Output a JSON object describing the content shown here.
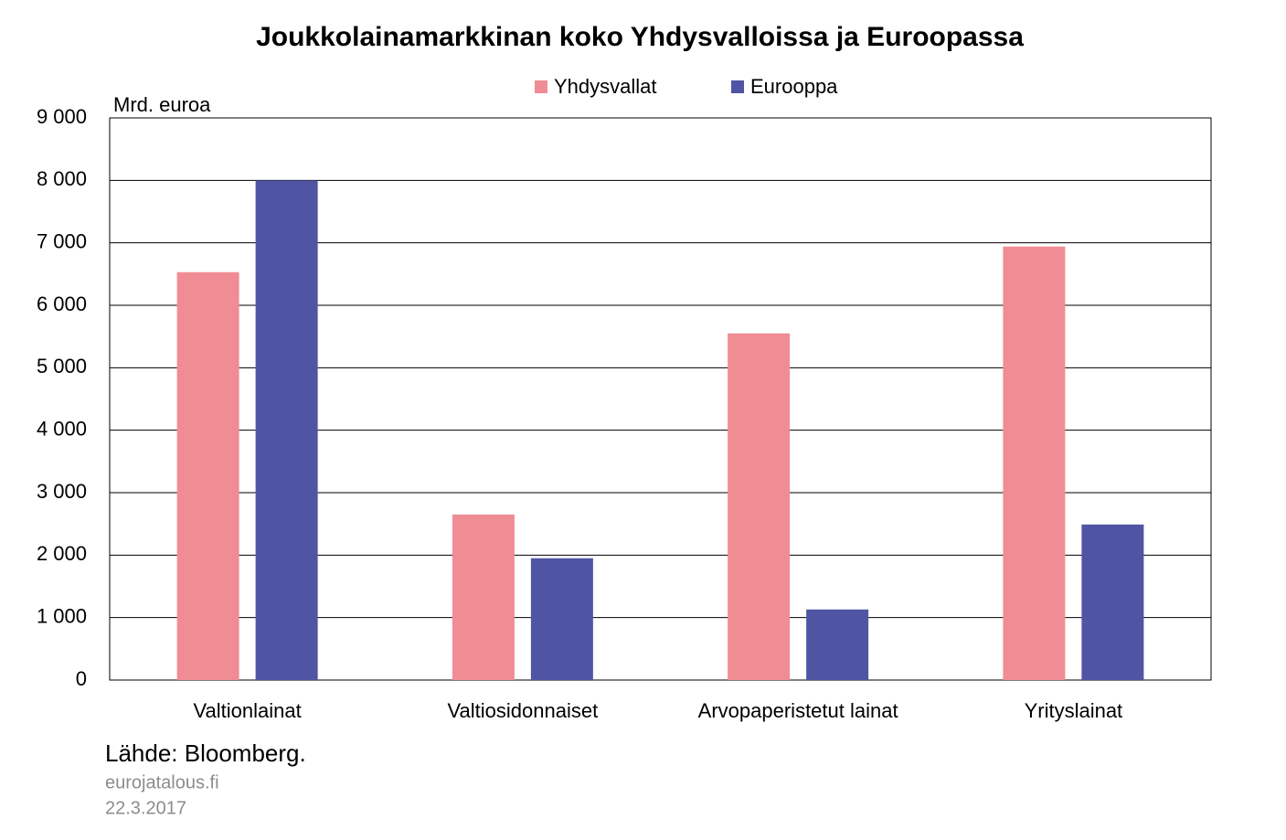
{
  "chart_data": {
    "type": "bar",
    "title": "Joukkolainamarkkinan  koko  Yhdysvalloissa  ja Euroopassa",
    "y_axis_label": "Mrd. euroa",
    "categories": [
      "Valtionlainat",
      "Valtiosidonnaiset",
      "Arvopaperistetut lainat",
      "Yrityslainat"
    ],
    "series": [
      {
        "name": "Yhdysvallat",
        "color": "#f08c94",
        "values": [
          6530,
          2650,
          5550,
          6940
        ]
      },
      {
        "name": "Eurooppa",
        "color": "#4f55a3",
        "values": [
          8000,
          1950,
          1130,
          2490
        ]
      }
    ],
    "ylim": [
      0,
      9000
    ],
    "yticks": [
      0,
      {
        "value": 1000,
        "label": "1 000"
      },
      {
        "value": 2000,
        "label": "2 000"
      },
      {
        "value": 3000,
        "label": "3 000"
      },
      {
        "value": 4000,
        "label": "4 000"
      },
      {
        "value": 5000,
        "label": "5 000"
      },
      {
        "value": 6000,
        "label": "6 000"
      },
      {
        "value": 7000,
        "label": "7 000"
      },
      {
        "value": 8000,
        "label": "8 000"
      },
      {
        "value": 9000,
        "label": "9 000"
      }
    ],
    "grid": true,
    "legend": "top",
    "source": "Lähde: Bloomberg.",
    "site": "eurojatalous.fi",
    "date": "22.3.2017"
  }
}
